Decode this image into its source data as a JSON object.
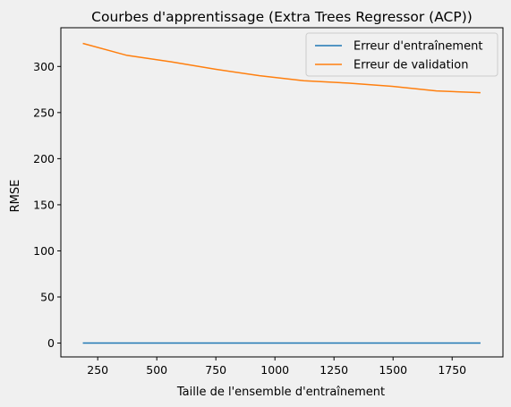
{
  "chart_data": {
    "type": "line",
    "title": "Courbes d'apprentissage (Extra Trees Regressor (ACP))",
    "xlabel": "Taille de l'ensemble d'entraînement",
    "ylabel": "RMSE",
    "xlim": [
      94,
      1965
    ],
    "ylim": [
      -15,
      342
    ],
    "xticks": [
      250,
      500,
      750,
      1000,
      1250,
      1500,
      1750
    ],
    "yticks": [
      0,
      50,
      100,
      150,
      200,
      250,
      300
    ],
    "grid": false,
    "legend_position": "upper right",
    "series": [
      {
        "name": "Erreur d'entraînement",
        "color": "#1f77b4",
        "x": [
          187,
          374,
          561,
          748,
          935,
          1122,
          1309,
          1496,
          1683,
          1870
        ],
        "y": [
          0,
          0,
          0,
          0,
          0,
          0,
          0,
          0,
          0,
          0
        ]
      },
      {
        "name": "Erreur de validation",
        "color": "#ff7f0e",
        "x": [
          187,
          374,
          561,
          748,
          935,
          1122,
          1309,
          1496,
          1683,
          1870
        ],
        "y": [
          325,
          312,
          305,
          297,
          290,
          284.5,
          282,
          278.5,
          273.5,
          271.5
        ]
      }
    ]
  }
}
